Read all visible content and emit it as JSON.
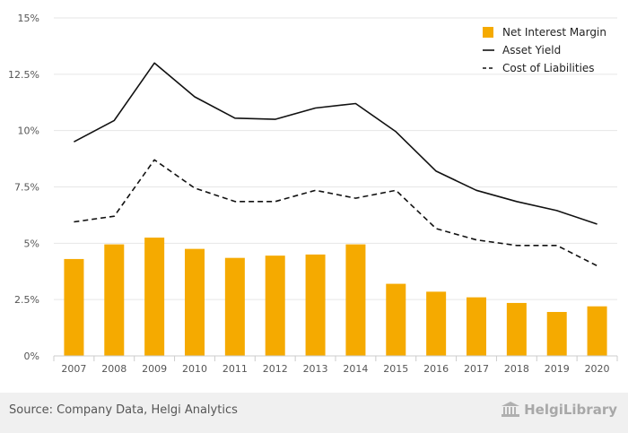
{
  "chart_data": {
    "type": "bar",
    "categories": [
      "2007",
      "2008",
      "2009",
      "2010",
      "2011",
      "2012",
      "2013",
      "2014",
      "2015",
      "2016",
      "2017",
      "2018",
      "2019",
      "2020"
    ],
    "series": [
      {
        "name": "Net Interest Margin",
        "type": "bar",
        "color": "#f5aa00",
        "values": [
          4.3,
          4.95,
          5.25,
          4.75,
          4.35,
          4.45,
          4.5,
          4.95,
          3.2,
          2.85,
          2.6,
          2.35,
          1.95,
          2.2
        ]
      },
      {
        "name": "Asset Yield",
        "type": "line",
        "style": "solid",
        "color": "#111111",
        "values": [
          9.5,
          10.45,
          13.0,
          11.5,
          10.55,
          10.5,
          11.0,
          11.2,
          9.95,
          8.2,
          7.35,
          6.85,
          6.45,
          5.85
        ]
      },
      {
        "name": "Cost of Liabilities",
        "type": "line",
        "style": "dashed",
        "color": "#111111",
        "values": [
          5.95,
          6.2,
          8.7,
          7.45,
          6.85,
          6.85,
          7.35,
          7.0,
          7.35,
          5.65,
          5.15,
          4.9,
          4.9,
          4.0
        ]
      }
    ],
    "y_ticks": [
      {
        "value": 0,
        "label": "0%"
      },
      {
        "value": 2.5,
        "label": "2.5%"
      },
      {
        "value": 5,
        "label": "5%"
      },
      {
        "value": 7.5,
        "label": "7.5%"
      },
      {
        "value": 10,
        "label": "10%"
      },
      {
        "value": 12.5,
        "label": "12.5%"
      },
      {
        "value": 15,
        "label": "15%"
      }
    ],
    "ylim": [
      0,
      15
    ],
    "title": "",
    "xlabel": "",
    "ylabel": "",
    "grid": true,
    "legend_position": "top-right"
  },
  "footer": {
    "source": "Source: Company Data, Helgi Analytics",
    "logo_text": "HelgiLibrary"
  },
  "colors": {
    "bar": "#f5aa00",
    "line": "#111111",
    "grid": "#e6e6e6",
    "footer_bg": "#f0f0f0"
  }
}
